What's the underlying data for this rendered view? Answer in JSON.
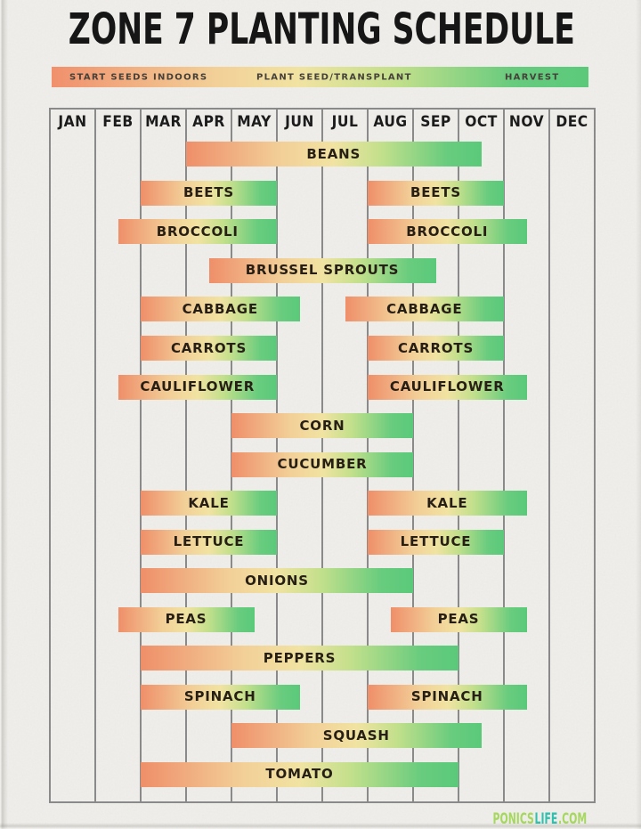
{
  "page": {
    "background": "#efeeea"
  },
  "title": "ZONE 7 PLANTING SCHEDULE",
  "legend": {
    "items": [
      {
        "label": "START SEEDS INDOORS"
      },
      {
        "label": "PLANT SEED/TRANSPLANT"
      },
      {
        "label": "HARVEST"
      }
    ],
    "gradient": [
      "#f0906c",
      "#f1e3a2",
      "#5bc97a"
    ]
  },
  "footer": {
    "parts": [
      {
        "text": "PONICS",
        "color": "#a6d75f"
      },
      {
        "text": "LIFE",
        "color": "#2fc0ae"
      },
      {
        "text": ".COM",
        "color": "#a6d75f"
      }
    ]
  },
  "chart_data": {
    "type": "bar",
    "variant": "gantt-planting-schedule",
    "title": "ZONE 7 PLANTING SCHEDULE",
    "xlabel": "",
    "ylabel": "",
    "x_axis": {
      "unit": "month",
      "range": [
        0,
        12
      ],
      "categories": [
        "JAN",
        "FEB",
        "MAR",
        "APR",
        "MAY",
        "JUN",
        "JUL",
        "AUG",
        "SEP",
        "OCT",
        "NOV",
        "DEC"
      ]
    },
    "legend_entries": [
      "START SEEDS INDOORS",
      "PLANT SEED/TRANSPLANT",
      "HARVEST"
    ],
    "legend_position": "top",
    "grid": true,
    "bar_gradient_stops": [
      "#ef8f6a",
      "#f1e3a2",
      "#5ac97a"
    ],
    "rows": [
      {
        "label": "BEANS",
        "spans": [
          [
            3.0,
            9.5
          ]
        ]
      },
      {
        "label": "BEETS",
        "spans": [
          [
            2.0,
            5.0
          ],
          [
            7.0,
            10.0
          ]
        ]
      },
      {
        "label": "BROCCOLI",
        "spans": [
          [
            1.5,
            5.0
          ],
          [
            7.0,
            10.5
          ]
        ]
      },
      {
        "label": "BRUSSEL SPROUTS",
        "spans": [
          [
            3.5,
            8.5
          ]
        ]
      },
      {
        "label": "CABBAGE",
        "spans": [
          [
            2.0,
            5.5
          ],
          [
            6.5,
            10.0
          ]
        ]
      },
      {
        "label": "CARROTS",
        "spans": [
          [
            2.0,
            5.0
          ],
          [
            7.0,
            10.0
          ]
        ]
      },
      {
        "label": "CAULIFLOWER",
        "spans": [
          [
            1.5,
            5.0
          ],
          [
            7.0,
            10.5
          ]
        ]
      },
      {
        "label": "CORN",
        "spans": [
          [
            4.0,
            8.0
          ]
        ]
      },
      {
        "label": "CUCUMBER",
        "spans": [
          [
            4.0,
            8.0
          ]
        ]
      },
      {
        "label": "KALE",
        "spans": [
          [
            2.0,
            5.0
          ],
          [
            7.0,
            10.5
          ]
        ]
      },
      {
        "label": "LETTUCE",
        "spans": [
          [
            2.0,
            5.0
          ],
          [
            7.0,
            10.0
          ]
        ]
      },
      {
        "label": "ONIONS",
        "spans": [
          [
            2.0,
            8.0
          ]
        ]
      },
      {
        "label": "PEAS",
        "spans": [
          [
            1.5,
            4.5
          ],
          [
            7.5,
            10.5
          ]
        ]
      },
      {
        "label": "PEPPERS",
        "spans": [
          [
            2.0,
            9.0
          ]
        ]
      },
      {
        "label": "SPINACH",
        "spans": [
          [
            2.0,
            5.5
          ],
          [
            7.0,
            10.5
          ]
        ]
      },
      {
        "label": "SQUASH",
        "spans": [
          [
            4.0,
            9.5
          ]
        ]
      },
      {
        "label": "TOMATO",
        "spans": [
          [
            2.0,
            9.0
          ]
        ]
      }
    ]
  }
}
